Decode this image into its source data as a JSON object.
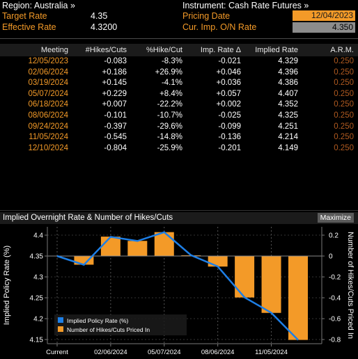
{
  "region": {
    "label": "Region: Australia »"
  },
  "instrument": {
    "label": "Instrument: Cash Rate Futures »"
  },
  "target_rate": {
    "label": "Target Rate",
    "value": "4.35"
  },
  "effective_rate": {
    "label": "Effective Rate",
    "value": "4.3200"
  },
  "pricing_date": {
    "label": "Pricing Date",
    "value": "12/04/2023"
  },
  "cur_imp": {
    "label": "Cur. Imp. O/N Rate",
    "value": "4.350"
  },
  "table": {
    "headers": [
      "Meeting",
      "#Hikes/Cuts",
      "%Hike/Cut",
      "Imp. Rate Δ",
      "Implied Rate",
      "A.R.M."
    ],
    "rows": [
      [
        "12/05/2023",
        "-0.083",
        "-8.3%",
        "-0.021",
        "4.329",
        "0.250"
      ],
      [
        "02/06/2024",
        "+0.186",
        "+26.9%",
        "+0.046",
        "4.396",
        "0.250"
      ],
      [
        "03/19/2024",
        "+0.145",
        "-4.1%",
        "+0.036",
        "4.386",
        "0.250"
      ],
      [
        "05/07/2024",
        "+0.229",
        "+8.4%",
        "+0.057",
        "4.407",
        "0.250"
      ],
      [
        "06/18/2024",
        "+0.007",
        "-22.2%",
        "+0.002",
        "4.352",
        "0.250"
      ],
      [
        "08/06/2024",
        "-0.101",
        "-10.7%",
        "-0.025",
        "4.325",
        "0.250"
      ],
      [
        "09/24/2024",
        "-0.397",
        "-29.6%",
        "-0.099",
        "4.251",
        "0.250"
      ],
      [
        "11/05/2024",
        "-0.545",
        "-14.8%",
        "-0.136",
        "4.214",
        "0.250"
      ],
      [
        "12/10/2024",
        "-0.804",
        "-25.9%",
        "-0.201",
        "4.149",
        "0.250"
      ]
    ]
  },
  "chart_panel": {
    "title": "Implied Overnight Rate & Number of Hikes/Cuts",
    "maximize_label": "Maximize"
  },
  "colors": {
    "accent_orange": "#f39a28",
    "line_blue": "#1e7fe6",
    "input_bg": "#f39a28",
    "readonly_bg": "#8c8c8c"
  },
  "chart_data": {
    "type": "bar+line",
    "x_labels": [
      "Current",
      "02/06/2024",
      "05/07/2024",
      "08/06/2024",
      "11/05/2024"
    ],
    "categories": [
      "Current",
      "12/05/2023",
      "02/06/2024",
      "03/19/2024",
      "05/07/2024",
      "06/18/2024",
      "08/06/2024",
      "09/24/2024",
      "11/05/2024",
      "12/10/2024"
    ],
    "series": [
      {
        "name": "Implied Policy Rate (%)",
        "type": "line",
        "axis": "left",
        "values": [
          4.35,
          4.329,
          4.396,
          4.386,
          4.407,
          4.352,
          4.325,
          4.251,
          4.214,
          4.149
        ]
      },
      {
        "name": "Number of Hikes/Cuts Priced In",
        "type": "bar",
        "axis": "right",
        "values": [
          0,
          -0.083,
          0.186,
          0.145,
          0.229,
          0.007,
          -0.101,
          -0.397,
          -0.545,
          -0.804
        ]
      }
    ],
    "ylabel_left": "Implied Policy Rate (%)",
    "ylabel_right": "Number of Hikes/Cuts Priced In",
    "yticks_left": [
      "4.4",
      "4.35",
      "4.3",
      "4.25",
      "4.2",
      "4.15"
    ],
    "yticks_right": [
      "0.2",
      "0",
      "-0.2",
      "-0.4",
      "-0.6",
      "-0.8"
    ],
    "ylim_left": [
      4.14,
      4.42
    ],
    "ylim_right": [
      -0.84,
      0.28
    ],
    "legend_position": "bottom-left",
    "grid": "vertical dashed"
  }
}
